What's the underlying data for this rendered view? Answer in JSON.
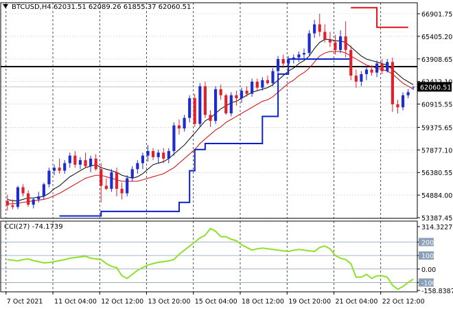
{
  "header": {
    "symbol_label": "BTCUSD,H4",
    "ohlc": "62031.51 62089.26 61855.37 62060.51",
    "cci_label": "CCI(27) -74.1739"
  },
  "colors": {
    "bull_candle": "#1e2bd0",
    "bear_candle": "#e0202a",
    "ma_fast": "#000000",
    "ma_slow": "#d40000",
    "trail_stop_long": "#0a1fd0",
    "trail_stop_short": "#e0101a",
    "cci_line": "#8ee02a",
    "last_price_tag_bg": "#000000"
  },
  "chart_data": [
    {
      "type": "candlestick",
      "title": "BTCUSD,H4",
      "ylim": [
        53387.45,
        67500
      ],
      "y_ticks": [
        "66901.75",
        "65405.20",
        "63908.65",
        "62412.10",
        "60915.55",
        "59375.65",
        "57877.10",
        "56380.55",
        "54884.00",
        "53387.45"
      ],
      "y_tick_values": [
        66901.75,
        65405.2,
        63908.65,
        62412.1,
        60915.55,
        59375.65,
        57877.1,
        56380.55,
        54884.0,
        53387.45
      ],
      "x_labels": [
        "7 Oct 2021",
        "11 Oct 04:00",
        "12 Oct 12:00",
        "13 Oct 20:00",
        "15 Oct 04:00",
        "18 Oct 12:00",
        "19 Oct 20:00",
        "21 Oct 04:00",
        "22 Oct 12:00"
      ],
      "horizontal_level": 63400,
      "last_price": 62060.51,
      "last_price_label": "62060.51",
      "candles": [
        {
          "o": 54500,
          "h": 54900,
          "l": 53850,
          "c": 54200
        },
        {
          "o": 54200,
          "h": 54600,
          "l": 53950,
          "c": 54100
        },
        {
          "o": 54100,
          "h": 55500,
          "l": 53950,
          "c": 55400
        },
        {
          "o": 55400,
          "h": 55600,
          "l": 54800,
          "c": 55000
        },
        {
          "o": 55000,
          "h": 55200,
          "l": 54100,
          "c": 54250
        },
        {
          "o": 54250,
          "h": 54700,
          "l": 54000,
          "c": 54600
        },
        {
          "o": 54600,
          "h": 55100,
          "l": 54400,
          "c": 54800
        },
        {
          "o": 54800,
          "h": 55700,
          "l": 54600,
          "c": 55600
        },
        {
          "o": 55600,
          "h": 56700,
          "l": 55400,
          "c": 56500
        },
        {
          "o": 56500,
          "h": 56900,
          "l": 56200,
          "c": 56700
        },
        {
          "o": 56700,
          "h": 57300,
          "l": 56300,
          "c": 56500
        },
        {
          "o": 56500,
          "h": 57200,
          "l": 56300,
          "c": 57000
        },
        {
          "o": 57000,
          "h": 57700,
          "l": 56700,
          "c": 57500
        },
        {
          "o": 57500,
          "h": 57800,
          "l": 56700,
          "c": 56900
        },
        {
          "o": 56900,
          "h": 57400,
          "l": 56600,
          "c": 57200
        },
        {
          "o": 57200,
          "h": 57700,
          "l": 56700,
          "c": 56800
        },
        {
          "o": 56800,
          "h": 57500,
          "l": 56400,
          "c": 57300
        },
        {
          "o": 57300,
          "h": 57600,
          "l": 56500,
          "c": 56600
        },
        {
          "o": 56600,
          "h": 57000,
          "l": 54400,
          "c": 55500
        },
        {
          "o": 55500,
          "h": 56000,
          "l": 55200,
          "c": 55300
        },
        {
          "o": 55300,
          "h": 56600,
          "l": 55100,
          "c": 56400
        },
        {
          "o": 56400,
          "h": 56700,
          "l": 54800,
          "c": 55300
        },
        {
          "o": 55300,
          "h": 55700,
          "l": 54600,
          "c": 55000
        },
        {
          "o": 55000,
          "h": 56200,
          "l": 54800,
          "c": 56000
        },
        {
          "o": 56000,
          "h": 56800,
          "l": 55800,
          "c": 56600
        },
        {
          "o": 56600,
          "h": 57200,
          "l": 56300,
          "c": 57000
        },
        {
          "o": 57000,
          "h": 57700,
          "l": 56600,
          "c": 57500
        },
        {
          "o": 57500,
          "h": 58200,
          "l": 57100,
          "c": 57800
        },
        {
          "o": 57800,
          "h": 58000,
          "l": 57200,
          "c": 57400
        },
        {
          "o": 57400,
          "h": 57900,
          "l": 57000,
          "c": 57700
        },
        {
          "o": 57700,
          "h": 58000,
          "l": 57000,
          "c": 57300
        },
        {
          "o": 57300,
          "h": 58000,
          "l": 57000,
          "c": 57800
        },
        {
          "o": 57800,
          "h": 59700,
          "l": 57500,
          "c": 59500
        },
        {
          "o": 59500,
          "h": 59900,
          "l": 58900,
          "c": 59300
        },
        {
          "o": 59300,
          "h": 60200,
          "l": 59100,
          "c": 60000
        },
        {
          "o": 60000,
          "h": 61500,
          "l": 59700,
          "c": 61300
        },
        {
          "o": 61300,
          "h": 61600,
          "l": 59400,
          "c": 59600
        },
        {
          "o": 59600,
          "h": 62300,
          "l": 59400,
          "c": 62100
        },
        {
          "o": 62100,
          "h": 62400,
          "l": 60000,
          "c": 60200
        },
        {
          "o": 60200,
          "h": 60500,
          "l": 59400,
          "c": 59800
        },
        {
          "o": 59800,
          "h": 62100,
          "l": 59600,
          "c": 61900
        },
        {
          "o": 61900,
          "h": 62200,
          "l": 61200,
          "c": 61500
        },
        {
          "o": 61500,
          "h": 61600,
          "l": 60200,
          "c": 60300
        },
        {
          "o": 60300,
          "h": 61700,
          "l": 60100,
          "c": 61500
        },
        {
          "o": 61500,
          "h": 61800,
          "l": 60800,
          "c": 61300
        },
        {
          "o": 61300,
          "h": 62000,
          "l": 61000,
          "c": 61800
        },
        {
          "o": 61800,
          "h": 62100,
          "l": 61400,
          "c": 61600
        },
        {
          "o": 61600,
          "h": 62600,
          "l": 61400,
          "c": 62400
        },
        {
          "o": 62400,
          "h": 62600,
          "l": 61800,
          "c": 62000
        },
        {
          "o": 62000,
          "h": 62700,
          "l": 61800,
          "c": 62500
        },
        {
          "o": 62500,
          "h": 62800,
          "l": 62200,
          "c": 62300
        },
        {
          "o": 62300,
          "h": 63300,
          "l": 62100,
          "c": 63100
        },
        {
          "o": 63100,
          "h": 64100,
          "l": 62900,
          "c": 63900
        },
        {
          "o": 63900,
          "h": 64200,
          "l": 63300,
          "c": 63600
        },
        {
          "o": 63600,
          "h": 64100,
          "l": 63400,
          "c": 63900
        },
        {
          "o": 63900,
          "h": 64200,
          "l": 63600,
          "c": 64000
        },
        {
          "o": 64000,
          "h": 64400,
          "l": 63700,
          "c": 64200
        },
        {
          "o": 64200,
          "h": 64600,
          "l": 63900,
          "c": 64300
        },
        {
          "o": 64300,
          "h": 65800,
          "l": 64100,
          "c": 65600
        },
        {
          "o": 65600,
          "h": 66500,
          "l": 65300,
          "c": 66200
        },
        {
          "o": 66200,
          "h": 66900,
          "l": 65400,
          "c": 65700
        },
        {
          "o": 65700,
          "h": 66200,
          "l": 65000,
          "c": 65200
        },
        {
          "o": 65200,
          "h": 65700,
          "l": 64700,
          "c": 65000
        },
        {
          "o": 65000,
          "h": 65500,
          "l": 64200,
          "c": 64500
        },
        {
          "o": 64500,
          "h": 65800,
          "l": 64300,
          "c": 65400
        },
        {
          "o": 65400,
          "h": 66400,
          "l": 64000,
          "c": 64500
        },
        {
          "o": 64500,
          "h": 64800,
          "l": 62500,
          "c": 62800
        },
        {
          "o": 62800,
          "h": 63200,
          "l": 62000,
          "c": 62400
        },
        {
          "o": 62400,
          "h": 63100,
          "l": 62100,
          "c": 62900
        },
        {
          "o": 62900,
          "h": 63400,
          "l": 62500,
          "c": 63200
        },
        {
          "o": 63200,
          "h": 63500,
          "l": 62800,
          "c": 63000
        },
        {
          "o": 63000,
          "h": 63800,
          "l": 62700,
          "c": 63600
        },
        {
          "o": 63600,
          "h": 63900,
          "l": 62900,
          "c": 63100
        },
        {
          "o": 63100,
          "h": 63900,
          "l": 63000,
          "c": 63700
        },
        {
          "o": 63700,
          "h": 64000,
          "l": 60400,
          "c": 60900
        },
        {
          "o": 60900,
          "h": 61200,
          "l": 60300,
          "c": 60700
        },
        {
          "o": 60700,
          "h": 61700,
          "l": 60500,
          "c": 61500
        },
        {
          "o": 61500,
          "h": 61900,
          "l": 61300,
          "c": 61700
        },
        {
          "o": 62031.51,
          "h": 62089.26,
          "l": 61855.37,
          "c": 62060.51
        }
      ],
      "ma_fast": [
        54600,
        54500,
        54500,
        54600,
        54700,
        54700,
        54750,
        54800,
        55000,
        55300,
        55500,
        55800,
        56100,
        56300,
        56500,
        56700,
        56800,
        56900,
        56700,
        56600,
        56500,
        56400,
        56200,
        56100,
        56000,
        56100,
        56300,
        56600,
        56900,
        57000,
        57100,
        57300,
        57600,
        57900,
        58200,
        58600,
        59000,
        59400,
        59800,
        60000,
        60300,
        60600,
        60800,
        61000,
        61100,
        61300,
        61500,
        61700,
        61800,
        61900,
        62000,
        62200,
        62500,
        62800,
        63100,
        63300,
        63600,
        63800,
        64100,
        64600,
        65000,
        65200,
        65200,
        65100,
        65100,
        65000,
        64700,
        64400,
        64100,
        63900,
        63800,
        63700,
        63600,
        63500,
        63200,
        62900,
        62600,
        62400,
        62200
      ],
      "ma_slow": [
        54300,
        54300,
        54350,
        54400,
        54450,
        54500,
        54550,
        54600,
        54700,
        54850,
        55000,
        55200,
        55400,
        55600,
        55800,
        56000,
        56100,
        56200,
        56200,
        56100,
        56000,
        55900,
        55800,
        55800,
        55800,
        55800,
        55900,
        56000,
        56100,
        56200,
        56300,
        56500,
        56700,
        57000,
        57300,
        57600,
        57900,
        58300,
        58600,
        58900,
        59200,
        59400,
        59700,
        59900,
        60100,
        60300,
        60500,
        60700,
        60900,
        61100,
        61200,
        61400,
        61700,
        62000,
        62300,
        62500,
        62800,
        63000,
        63300,
        63700,
        64100,
        64300,
        64400,
        64400,
        64400,
        64300,
        64100,
        63900,
        63700,
        63500,
        63400,
        63300,
        63200,
        63100,
        62900,
        62600,
        62300,
        62100,
        61900
      ],
      "trail_stop_long": [
        {
          "from": 10,
          "to": 18,
          "value": 53500
        },
        {
          "from": 18,
          "to": 33,
          "value": 53800
        },
        {
          "from": 33,
          "to": 35,
          "value": 54400
        },
        {
          "from": 35,
          "to": 36,
          "value": 56500
        },
        {
          "from": 36,
          "to": 38,
          "value": 57900
        },
        {
          "from": 38,
          "to": 49,
          "value": 58300
        },
        {
          "from": 49,
          "to": 52,
          "value": 60100
        },
        {
          "from": 52,
          "to": 54,
          "value": 62900
        },
        {
          "from": 54,
          "to": 62,
          "value": 63900
        },
        {
          "from": 62,
          "to": 66,
          "value": 63900
        }
      ],
      "trail_stop_short": [
        {
          "from": 66,
          "to": 71,
          "value": 67300
        },
        {
          "from": 71,
          "to": 77,
          "value": 66000
        }
      ]
    },
    {
      "type": "line",
      "title": "CCI(27) -74.1739",
      "ylim": [
        -158.8387,
        314.3227
      ],
      "y_ticks": [
        "314.3227",
        "200",
        "100",
        "0.00",
        "-100",
        "-158.8387"
      ],
      "y_tick_values": [
        314.3227,
        200,
        100,
        0,
        -100,
        -158.8387
      ],
      "levels": [
        200,
        100,
        0,
        -100
      ],
      "series": [
        {
          "values": [
            70,
            65,
            60,
            70,
            75,
            62,
            55,
            45,
            48,
            55,
            62,
            70,
            80,
            85,
            90,
            95,
            80,
            75,
            70,
            40,
            20,
            10,
            -50,
            -70,
            -40,
            -10,
            10,
            30,
            40,
            50,
            55,
            60,
            70,
            110,
            140,
            170,
            200,
            230,
            250,
            300,
            280,
            240,
            240,
            220,
            210,
            180,
            160,
            140,
            150,
            155,
            150,
            145,
            140,
            135,
            130,
            140,
            145,
            140,
            135,
            130,
            160,
            170,
            150,
            100,
            80,
            70,
            40,
            -60,
            -60,
            -40,
            -70,
            -50,
            -50,
            -60,
            -120,
            -150,
            -130,
            -100,
            -75
          ]
        }
      ]
    }
  ]
}
